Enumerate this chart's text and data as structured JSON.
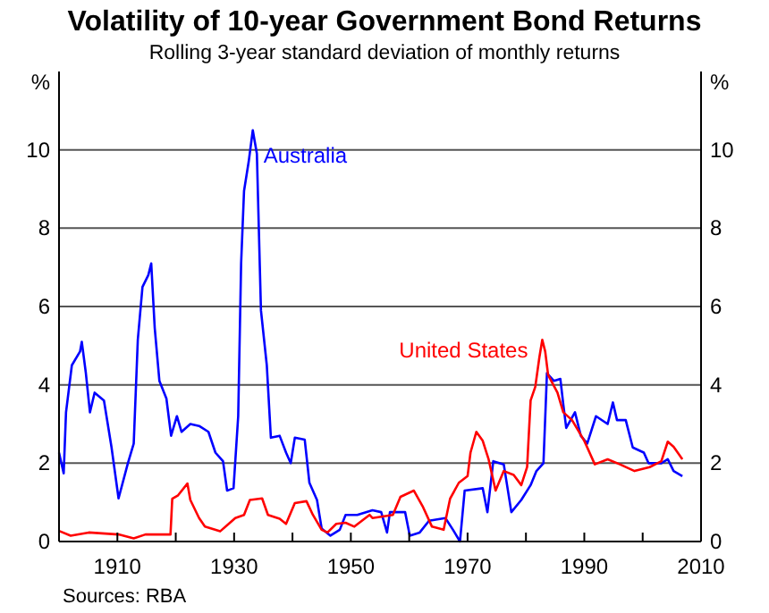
{
  "chart_data": {
    "type": "line",
    "title": "Volatility of 10-year Government Bond Returns",
    "subtitle": "Rolling 3-year standard deviation of monthly returns",
    "ylabel": "%",
    "y2label": "%",
    "annotations": [
      "Sources: RBA"
    ],
    "xlim": [
      1900,
      2010
    ],
    "xticks": [
      {
        "value": 1900,
        "label": null
      },
      1910,
      {
        "value": 1920,
        "label": null
      },
      1930,
      {
        "value": 1940,
        "label": null
      },
      1950,
      {
        "value": 1960,
        "label": null
      },
      1970,
      {
        "value": 1980,
        "label": null
      },
      1990,
      {
        "value": 2000,
        "label": null
      },
      2010
    ],
    "ylim": [
      0,
      12
    ],
    "yticks": [
      0,
      2,
      4,
      6,
      8,
      10
    ],
    "y2lim": [
      0,
      12
    ],
    "y2ticks": [
      0,
      2,
      4,
      6,
      8,
      10
    ],
    "grid": "y",
    "series": [
      {
        "name": "Australia",
        "color": "#0000ff",
        "x": [
          1900.0,
          1900.8,
          1901.2,
          1902.2,
          1903.6,
          1903.9,
          1904.6,
          1905.3,
          1906.1,
          1907.7,
          1909,
          1910.2,
          1911.8,
          1912.8,
          1913.5,
          1914.3,
          1915.3,
          1915.8,
          1916.4,
          1917.2,
          1918.4,
          1919.2,
          1920.2,
          1921,
          1922.5,
          1924,
          1925.6,
          1926.8,
          1928.1,
          1928.8,
          1929.9,
          1930.7,
          1931.2,
          1931.7,
          1932.5,
          1933.2,
          1933.9,
          1934.6,
          1935.6,
          1936.3,
          1937.8,
          1938.9,
          1939.7,
          1940.4,
          1942.1,
          1942.9,
          1944.2,
          1945,
          1946.5,
          1948.1,
          1949.1,
          1951.1,
          1953.7,
          1955.2,
          1956.2,
          1956.7,
          1959.3,
          1960.1,
          1961.8,
          1963.4,
          1966.2,
          1967.5,
          1968.7,
          1969.5,
          1972.6,
          1973.4,
          1974.4,
          1976.2,
          1977.5,
          1979.2,
          1980.8,
          1981.8,
          1983,
          1983.6,
          1984.8,
          1985.9,
          1986.4,
          1986.9,
          1988.4,
          1989.4,
          1990.5,
          1992,
          1994,
          1994.9,
          1995.6,
          1997.1,
          1998.3,
          2000.2,
          2001,
          2003.2,
          2004.3,
          2005.3,
          2006.8
        ],
        "values": [
          2.27,
          1.74,
          3.3,
          4.5,
          4.85,
          5.1,
          4.3,
          3.3,
          3.8,
          3.6,
          2.4,
          1.1,
          2.0,
          2.5,
          5.15,
          6.5,
          6.8,
          7.1,
          5.45,
          4.1,
          3.65,
          2.7,
          3.2,
          2.8,
          3.0,
          2.95,
          2.8,
          2.27,
          2.05,
          1.3,
          1.36,
          3.2,
          7.1,
          8.95,
          9.7,
          10.5,
          9.9,
          5.9,
          4.5,
          2.65,
          2.7,
          2.27,
          2.0,
          2.65,
          2.6,
          1.5,
          1.06,
          0.33,
          0.15,
          0.3,
          0.68,
          0.68,
          0.8,
          0.75,
          0.23,
          0.75,
          0.75,
          0.15,
          0.23,
          0.53,
          0.6,
          0.3,
          0.0,
          1.3,
          1.36,
          0.75,
          2.05,
          1.97,
          0.75,
          1.06,
          1.44,
          1.8,
          2.0,
          4.3,
          4.1,
          4.15,
          3.5,
          2.9,
          3.3,
          2.7,
          2.5,
          3.2,
          3.0,
          3.55,
          3.1,
          3.1,
          2.4,
          2.27,
          2.0,
          2.0,
          2.1,
          1.8,
          1.67
        ]
      },
      {
        "name": "United States",
        "color": "#ff0000",
        "x": [
          1900,
          1902,
          1905.1,
          1910.2,
          1912.8,
          1914.8,
          1919.1,
          1919.4,
          1920.4,
          1922,
          1922.5,
          1924,
          1925,
          1927.6,
          1930.2,
          1931.7,
          1932.7,
          1934.8,
          1935.8,
          1937.8,
          1938.9,
          1940.4,
          1942.4,
          1943.5,
          1945,
          1946,
          1947.5,
          1949.1,
          1950.6,
          1953.2,
          1953.7,
          1957.2,
          1958.5,
          1960.8,
          1962.3,
          1963.9,
          1965.9,
          1967,
          1968.5,
          1970,
          1970.5,
          1971.5,
          1972.6,
          1973.6,
          1974.8,
          1976.2,
          1977.9,
          1979.2,
          1980.2,
          1980.8,
          1981.6,
          1982.3,
          1982.8,
          1983.3,
          1983.8,
          1985.4,
          1986.4,
          1987.9,
          1990,
          1991.8,
          1994,
          1996.1,
          1998.6,
          2001.2,
          2003.2,
          2004.3,
          2005.3,
          2006.8
        ],
        "values": [
          0.27,
          0.15,
          0.23,
          0.18,
          0.08,
          0.18,
          0.18,
          1.09,
          1.18,
          1.48,
          1.06,
          0.6,
          0.38,
          0.26,
          0.6,
          0.68,
          1.06,
          1.1,
          0.68,
          0.58,
          0.45,
          0.98,
          1.03,
          0.68,
          0.3,
          0.23,
          0.45,
          0.48,
          0.38,
          0.68,
          0.6,
          0.68,
          1.14,
          1.3,
          0.9,
          0.38,
          0.3,
          1.09,
          1.5,
          1.67,
          2.27,
          2.8,
          2.57,
          2.1,
          1.3,
          1.8,
          1.7,
          1.44,
          1.9,
          3.6,
          3.95,
          4.7,
          5.15,
          4.85,
          4.25,
          3.8,
          3.3,
          3.1,
          2.57,
          1.97,
          2.1,
          1.97,
          1.8,
          1.9,
          2.05,
          2.55,
          2.42,
          2.1
        ]
      }
    ]
  }
}
